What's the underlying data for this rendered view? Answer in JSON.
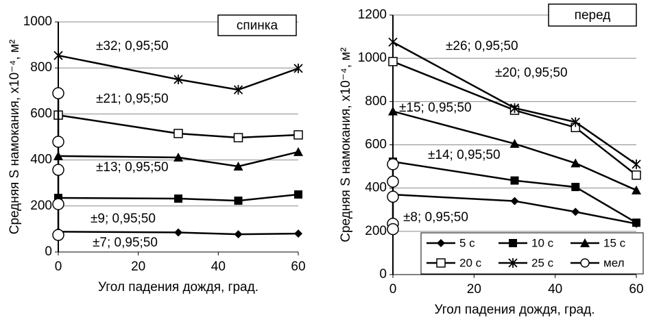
{
  "chart_data": [
    {
      "type": "line",
      "title": "спинка",
      "y_label": "Средняя S намокания, x10⁻⁴, м²",
      "x_label": "Угол падения дождя, град.",
      "xlim": [
        0,
        60
      ],
      "xticks": [
        0,
        20,
        40,
        60
      ],
      "ylim": [
        0,
        1000
      ],
      "yticks": [
        0,
        200,
        400,
        600,
        800,
        1000
      ],
      "grid": true,
      "legend": null,
      "annotations": [
        "±32; 0,95;50",
        "±21; 0,95;50",
        "±13; 0,95;50",
        "±9; 0,95;50",
        "±7; 0,95;50"
      ],
      "series": [
        {
          "marker": "diamond",
          "color": "#000000",
          "x": [
            0,
            30,
            45,
            60
          ],
          "values": [
            88,
            85,
            77,
            80
          ]
        },
        {
          "marker": "square",
          "color": "#000000",
          "x": [
            0,
            30,
            45,
            60
          ],
          "values": [
            235,
            232,
            223,
            250
          ]
        },
        {
          "marker": "triangle",
          "color": "#000000",
          "x": [
            0,
            30,
            45,
            60
          ],
          "values": [
            417,
            411,
            372,
            435
          ]
        },
        {
          "marker": "open-square",
          "color": "#000000",
          "x": [
            0,
            30,
            45,
            60
          ],
          "values": [
            595,
            515,
            497,
            509
          ]
        },
        {
          "marker": "asterisk",
          "color": "#000000",
          "x": [
            0,
            30,
            45,
            60
          ],
          "values": [
            854,
            750,
            705,
            798
          ]
        },
        {
          "marker": "circle",
          "color": "#000000",
          "x": [
            0,
            0,
            0,
            0,
            0
          ],
          "values": [
            690,
            479,
            357,
            208,
            74
          ]
        }
      ]
    },
    {
      "type": "line",
      "title": "перед",
      "y_label": "Средняя S намокания, x10⁻⁴, м²",
      "x_label": "Угол падения дождя, град.",
      "xlim": [
        0,
        60
      ],
      "xticks": [
        0,
        20,
        40,
        60
      ],
      "ylim": [
        0,
        1200
      ],
      "yticks": [
        0,
        200,
        400,
        600,
        800,
        1000,
        1200
      ],
      "grid": true,
      "legend": "lower right",
      "annotations": [
        "±26; 0,95;50",
        "±20; 0,95;50",
        "±15; 0,95;50",
        "±14; 0,95;50",
        "±8; 0,95;50"
      ],
      "series": [
        {
          "name": "5 с",
          "marker": "diamond",
          "color": "#000000",
          "x": [
            0,
            30,
            45,
            60
          ],
          "values": [
            370,
            340,
            290,
            235
          ]
        },
        {
          "name": "10 с",
          "marker": "square",
          "color": "#000000",
          "x": [
            0,
            30,
            45,
            60
          ],
          "values": [
            522,
            435,
            405,
            240
          ]
        },
        {
          "name": "15 с",
          "marker": "triangle",
          "color": "#000000",
          "x": [
            0,
            30,
            45,
            60
          ],
          "values": [
            755,
            605,
            515,
            390
          ]
        },
        {
          "name": "20 с",
          "marker": "open-square",
          "color": "#000000",
          "x": [
            0,
            30,
            45,
            60
          ],
          "values": [
            985,
            760,
            680,
            460
          ]
        },
        {
          "name": "25 с",
          "marker": "asterisk",
          "color": "#000000",
          "x": [
            0,
            30,
            45,
            60
          ],
          "values": [
            1075,
            770,
            705,
            510
          ]
        },
        {
          "name": "мел",
          "marker": "circle",
          "color": "#000000",
          "x": [
            0,
            0,
            0,
            0,
            0
          ],
          "values": [
            510,
            430,
            360,
            235,
            210
          ]
        }
      ]
    }
  ]
}
